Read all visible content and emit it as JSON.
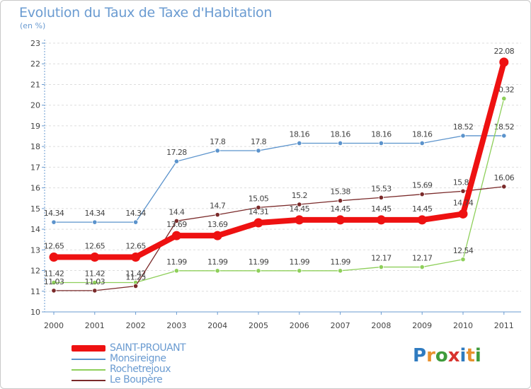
{
  "title": "Evolution du Taux de Taxe d'Habitation",
  "unit_label": "(en %)",
  "logo": {
    "text": "Proxiti",
    "letters": [
      {
        "ch": "P",
        "color": "#2f7bc0"
      },
      {
        "ch": "r",
        "color": "#e8912e"
      },
      {
        "ch": "o",
        "color": "#3f9b3c"
      },
      {
        "ch": "x",
        "color": "#d8332e"
      },
      {
        "ch": "i",
        "color": "#2f7bc0"
      },
      {
        "ch": "t",
        "color": "#e8912e"
      },
      {
        "ch": "i",
        "color": "#3f9b3c"
      }
    ]
  },
  "colors": {
    "axis": "#6a9bd1",
    "text": "#444444",
    "grid": "#dddddd",
    "title": "#6a9bd1"
  },
  "chart_data": {
    "type": "line",
    "title": "Evolution du Taux de Taxe d'Habitation",
    "ylabel": "(en %)",
    "xlabel": "",
    "grid": true,
    "ylim": [
      10,
      23
    ],
    "yticks": [
      "10",
      "11",
      "12",
      "13",
      "14",
      "15",
      "16",
      "17",
      "18",
      "19",
      "20",
      "21",
      "22",
      "23"
    ],
    "x": [
      "2000",
      "2001",
      "2002",
      "2003",
      "2004",
      "2005",
      "2006",
      "2007",
      "2008",
      "2009",
      "2010",
      "2011"
    ],
    "series": [
      {
        "name": "SAINT-PROUANT",
        "color": "#ee1111",
        "emphasis": true,
        "values": [
          12.65,
          12.65,
          12.65,
          13.69,
          13.69,
          14.31,
          14.45,
          14.45,
          14.45,
          14.45,
          14.74,
          22.08
        ],
        "labels": [
          "12.65",
          "12.65",
          "12.65",
          "13.69",
          "13.69",
          "14.31",
          "14.45",
          "14.45",
          "14.45",
          "14.45",
          "14.74",
          "22.08"
        ]
      },
      {
        "name": "Monsireigne",
        "color": "#5b93cc",
        "values": [
          14.34,
          14.34,
          14.34,
          17.28,
          17.8,
          17.8,
          18.16,
          18.16,
          18.16,
          18.16,
          18.52,
          18.52
        ],
        "labels": [
          "14.34",
          "14.34",
          "14.34",
          "17.28",
          "17.8",
          "17.8",
          "18.16",
          "18.16",
          "18.16",
          "18.16",
          "18.52",
          "18.52"
        ]
      },
      {
        "name": "Rochetrejoux",
        "color": "#8ecf5a",
        "values": [
          11.42,
          11.42,
          11.42,
          11.99,
          11.99,
          11.99,
          11.99,
          11.99,
          12.17,
          12.17,
          12.54,
          20.32
        ],
        "labels": [
          "11.42",
          "11.42",
          "11.42",
          "11.99",
          "11.99",
          "11.99",
          "11.99",
          "11.99",
          "12.17",
          "12.17",
          "12.54",
          "20.32"
        ]
      },
      {
        "name": "Le Boupère",
        "color": "#7a2a2a",
        "values": [
          11.03,
          11.03,
          11.25,
          14.4,
          14.7,
          15.05,
          15.2,
          15.38,
          15.53,
          15.69,
          15.84,
          16.06
        ],
        "labels": [
          "11.03",
          "11.03",
          "11.25",
          "14.4",
          "14.7",
          "15.05",
          "15.2",
          "15.38",
          "15.53",
          "15.69",
          "15.84",
          "16.06"
        ]
      }
    ]
  }
}
